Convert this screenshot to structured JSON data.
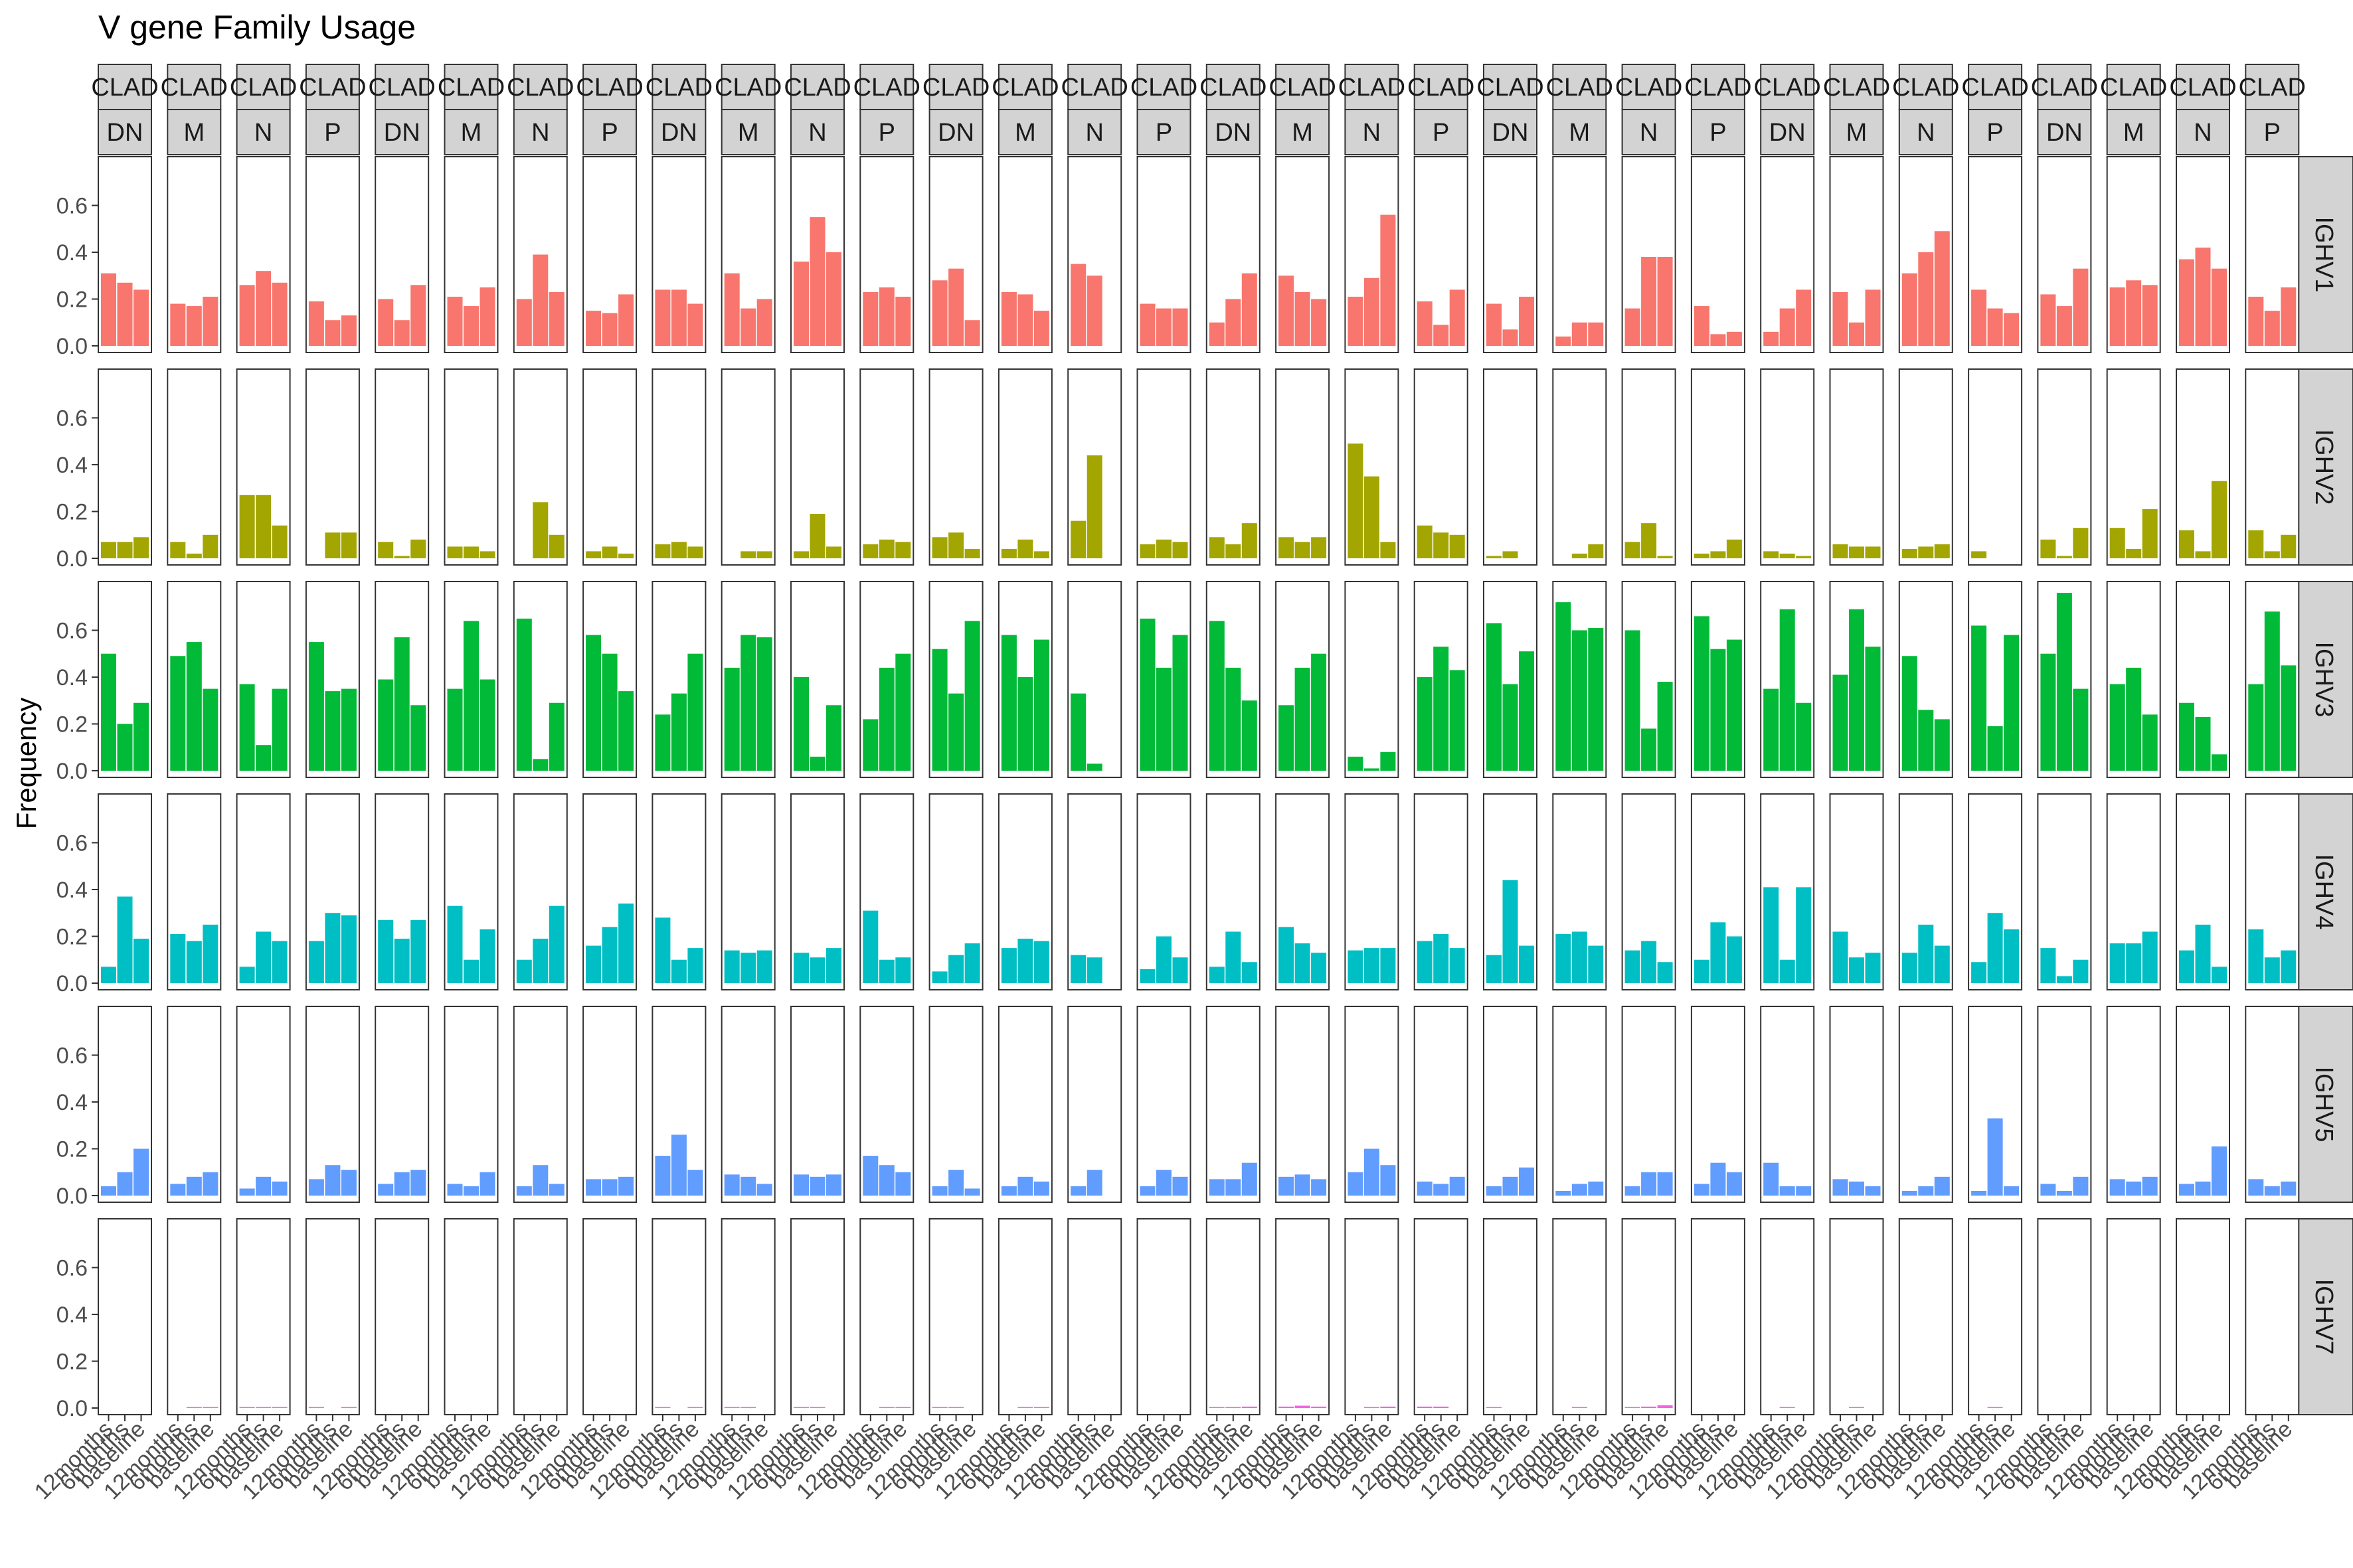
{
  "chart_data": {
    "type": "bar",
    "title": "V gene Family Usage",
    "ylabel": "Frequency",
    "xlabel": "",
    "ylim": [
      0,
      0.78
    ],
    "yticks": [
      0.0,
      0.2,
      0.4,
      0.6
    ],
    "ytick_labels": [
      "0.0",
      "0.2",
      "0.4",
      "0.6"
    ],
    "categories": [
      "12months",
      "6months",
      "baseline"
    ],
    "strip_top_label": "CLAD",
    "col_groups": [
      "DN",
      "M",
      "N",
      "P",
      "DN",
      "M",
      "N",
      "P",
      "DN",
      "M",
      "N",
      "P",
      "DN",
      "M",
      "N",
      "P",
      "DN",
      "M",
      "N",
      "P",
      "DN",
      "M",
      "N",
      "P",
      "DN",
      "M",
      "N",
      "P",
      "DN",
      "M",
      "N",
      "P"
    ],
    "grid": false,
    "legend": "none",
    "series": [
      {
        "name": "IGHV1",
        "color": "#F8766D",
        "values": [
          [
            0.31,
            0.27,
            0.24
          ],
          [
            0.18,
            0.17,
            0.21
          ],
          [
            0.26,
            0.32,
            0.27
          ],
          [
            0.19,
            0.11,
            0.13
          ],
          [
            0.2,
            0.11,
            0.26
          ],
          [
            0.21,
            0.17,
            0.25
          ],
          [
            0.2,
            0.39,
            0.23
          ],
          [
            0.15,
            0.14,
            0.22
          ],
          [
            0.24,
            0.24,
            0.18
          ],
          [
            0.31,
            0.16,
            0.2
          ],
          [
            0.36,
            0.55,
            0.4
          ],
          [
            0.23,
            0.25,
            0.21
          ],
          [
            0.28,
            0.33,
            0.11
          ],
          [
            0.23,
            0.22,
            0.15
          ],
          [
            0.35,
            0.3,
            0.0
          ],
          [
            0.18,
            0.16,
            0.16
          ],
          [
            0.1,
            0.2,
            0.31
          ],
          [
            0.3,
            0.23,
            0.2
          ],
          [
            0.21,
            0.29,
            0.56
          ],
          [
            0.19,
            0.09,
            0.24
          ],
          [
            0.18,
            0.07,
            0.21
          ],
          [
            0.04,
            0.1,
            0.1
          ],
          [
            0.16,
            0.38,
            0.38
          ],
          [
            0.17,
            0.05,
            0.06
          ],
          [
            0.06,
            0.16,
            0.24
          ],
          [
            0.23,
            0.1,
            0.24
          ],
          [
            0.31,
            0.4,
            0.49
          ],
          [
            0.24,
            0.16,
            0.14
          ],
          [
            0.22,
            0.17,
            0.33
          ],
          [
            0.25,
            0.28,
            0.26
          ],
          [
            0.37,
            0.42,
            0.33
          ],
          [
            0.21,
            0.15,
            0.25
          ]
        ]
      },
      {
        "name": "IGHV2",
        "color": "#A3A500",
        "values": [
          [
            0.07,
            0.07,
            0.09
          ],
          [
            0.07,
            0.02,
            0.1
          ],
          [
            0.27,
            0.27,
            0.14
          ],
          [
            0.0,
            0.11,
            0.11
          ],
          [
            0.07,
            0.01,
            0.08
          ],
          [
            0.05,
            0.05,
            0.03
          ],
          [
            0.0,
            0.24,
            0.1
          ],
          [
            0.03,
            0.05,
            0.02
          ],
          [
            0.06,
            0.07,
            0.05
          ],
          [
            0.0,
            0.03,
            0.03
          ],
          [
            0.03,
            0.19,
            0.05
          ],
          [
            0.06,
            0.08,
            0.07
          ],
          [
            0.09,
            0.11,
            0.04
          ],
          [
            0.04,
            0.08,
            0.03
          ],
          [
            0.16,
            0.44,
            0.0
          ],
          [
            0.06,
            0.08,
            0.07
          ],
          [
            0.09,
            0.06,
            0.15
          ],
          [
            0.09,
            0.07,
            0.09
          ],
          [
            0.49,
            0.35,
            0.07
          ],
          [
            0.14,
            0.11,
            0.1
          ],
          [
            0.01,
            0.03,
            0.0
          ],
          [
            0.0,
            0.02,
            0.06
          ],
          [
            0.07,
            0.15,
            0.01
          ],
          [
            0.02,
            0.03,
            0.08
          ],
          [
            0.03,
            0.02,
            0.01
          ],
          [
            0.06,
            0.05,
            0.05
          ],
          [
            0.04,
            0.05,
            0.06
          ],
          [
            0.03,
            0.0,
            0.0
          ],
          [
            0.08,
            0.01,
            0.13
          ],
          [
            0.13,
            0.04,
            0.21
          ],
          [
            0.12,
            0.03,
            0.33
          ],
          [
            0.12,
            0.03,
            0.1
          ]
        ]
      },
      {
        "name": "IGHV3",
        "color": "#00BA38",
        "values": [
          [
            0.5,
            0.2,
            0.29
          ],
          [
            0.49,
            0.55,
            0.35
          ],
          [
            0.37,
            0.11,
            0.35
          ],
          [
            0.55,
            0.34,
            0.35
          ],
          [
            0.39,
            0.57,
            0.28
          ],
          [
            0.35,
            0.64,
            0.39
          ],
          [
            0.65,
            0.05,
            0.29
          ],
          [
            0.58,
            0.5,
            0.34
          ],
          [
            0.24,
            0.33,
            0.5
          ],
          [
            0.44,
            0.58,
            0.57
          ],
          [
            0.4,
            0.06,
            0.28
          ],
          [
            0.22,
            0.44,
            0.5
          ],
          [
            0.52,
            0.33,
            0.64
          ],
          [
            0.58,
            0.4,
            0.56
          ],
          [
            0.33,
            0.03,
            0.0
          ],
          [
            0.65,
            0.44,
            0.58
          ],
          [
            0.64,
            0.44,
            0.3
          ],
          [
            0.28,
            0.44,
            0.5
          ],
          [
            0.06,
            0.01,
            0.08
          ],
          [
            0.4,
            0.53,
            0.43
          ],
          [
            0.63,
            0.37,
            0.51
          ],
          [
            0.72,
            0.6,
            0.61
          ],
          [
            0.6,
            0.18,
            0.38
          ],
          [
            0.66,
            0.52,
            0.56
          ],
          [
            0.35,
            0.69,
            0.29
          ],
          [
            0.41,
            0.69,
            0.53
          ],
          [
            0.49,
            0.26,
            0.22
          ],
          [
            0.62,
            0.19,
            0.58
          ],
          [
            0.5,
            0.76,
            0.35
          ],
          [
            0.37,
            0.44,
            0.24
          ],
          [
            0.29,
            0.23,
            0.07
          ],
          [
            0.37,
            0.68,
            0.45
          ]
        ]
      },
      {
        "name": "IGHV4",
        "color": "#00BFC4",
        "values": [
          [
            0.07,
            0.37,
            0.19
          ],
          [
            0.21,
            0.18,
            0.25
          ],
          [
            0.07,
            0.22,
            0.18
          ],
          [
            0.18,
            0.3,
            0.29
          ],
          [
            0.27,
            0.19,
            0.27
          ],
          [
            0.33,
            0.1,
            0.23
          ],
          [
            0.1,
            0.19,
            0.33
          ],
          [
            0.16,
            0.24,
            0.34
          ],
          [
            0.28,
            0.1,
            0.15
          ],
          [
            0.14,
            0.13,
            0.14
          ],
          [
            0.13,
            0.11,
            0.15
          ],
          [
            0.31,
            0.1,
            0.11
          ],
          [
            0.05,
            0.12,
            0.17
          ],
          [
            0.15,
            0.19,
            0.18
          ],
          [
            0.12,
            0.11,
            0.0
          ],
          [
            0.06,
            0.2,
            0.11
          ],
          [
            0.07,
            0.22,
            0.09
          ],
          [
            0.24,
            0.17,
            0.13
          ],
          [
            0.14,
            0.15,
            0.15
          ],
          [
            0.18,
            0.21,
            0.15
          ],
          [
            0.12,
            0.44,
            0.16
          ],
          [
            0.21,
            0.22,
            0.16
          ],
          [
            0.14,
            0.18,
            0.09
          ],
          [
            0.1,
            0.26,
            0.2
          ],
          [
            0.41,
            0.1,
            0.41
          ],
          [
            0.22,
            0.11,
            0.13
          ],
          [
            0.13,
            0.25,
            0.16
          ],
          [
            0.09,
            0.3,
            0.23
          ],
          [
            0.15,
            0.03,
            0.1
          ],
          [
            0.17,
            0.17,
            0.22
          ],
          [
            0.14,
            0.25,
            0.07
          ],
          [
            0.23,
            0.11,
            0.14
          ]
        ]
      },
      {
        "name": "IGHV5",
        "color": "#619CFF",
        "values": [
          [
            0.04,
            0.1,
            0.2
          ],
          [
            0.05,
            0.08,
            0.1
          ],
          [
            0.03,
            0.08,
            0.06
          ],
          [
            0.07,
            0.13,
            0.11
          ],
          [
            0.05,
            0.1,
            0.11
          ],
          [
            0.05,
            0.04,
            0.1
          ],
          [
            0.04,
            0.13,
            0.05
          ],
          [
            0.07,
            0.07,
            0.08
          ],
          [
            0.17,
            0.26,
            0.11
          ],
          [
            0.09,
            0.08,
            0.05
          ],
          [
            0.09,
            0.08,
            0.09
          ],
          [
            0.17,
            0.13,
            0.1
          ],
          [
            0.04,
            0.11,
            0.03
          ],
          [
            0.04,
            0.08,
            0.06
          ],
          [
            0.04,
            0.11,
            0.0
          ],
          [
            0.04,
            0.11,
            0.08
          ],
          [
            0.07,
            0.07,
            0.14
          ],
          [
            0.08,
            0.09,
            0.07
          ],
          [
            0.1,
            0.2,
            0.13
          ],
          [
            0.06,
            0.05,
            0.08
          ],
          [
            0.04,
            0.08,
            0.12
          ],
          [
            0.02,
            0.05,
            0.06
          ],
          [
            0.04,
            0.1,
            0.1
          ],
          [
            0.05,
            0.14,
            0.1
          ],
          [
            0.14,
            0.04,
            0.04
          ],
          [
            0.07,
            0.06,
            0.04
          ],
          [
            0.02,
            0.04,
            0.08
          ],
          [
            0.02,
            0.33,
            0.04
          ],
          [
            0.05,
            0.02,
            0.08
          ],
          [
            0.07,
            0.06,
            0.08
          ],
          [
            0.05,
            0.06,
            0.21
          ],
          [
            0.07,
            0.04,
            0.06
          ]
        ]
      },
      {
        "name": "IGHV7",
        "color": "#F564E3",
        "values": [
          [
            0,
            0,
            0
          ],
          [
            0,
            0.002,
            0.002
          ],
          [
            0.002,
            0.002,
            0.002
          ],
          [
            0.002,
            0,
            0.002
          ],
          [
            0,
            0,
            0
          ],
          [
            0,
            0,
            0
          ],
          [
            0,
            0,
            0
          ],
          [
            0,
            0,
            0
          ],
          [
            0.002,
            0,
            0.002
          ],
          [
            0.002,
            0.002,
            0
          ],
          [
            0.002,
            0.002,
            0
          ],
          [
            0,
            0.002,
            0.002
          ],
          [
            0.002,
            0.002,
            0
          ],
          [
            0,
            0.002,
            0.002
          ],
          [
            0,
            0,
            0
          ],
          [
            0,
            0,
            0
          ],
          [
            0.004,
            0.004,
            0.006
          ],
          [
            0.006,
            0.01,
            0.006
          ],
          [
            0,
            0.004,
            0.006
          ],
          [
            0.006,
            0.006,
            0
          ],
          [
            0.002,
            0,
            0
          ],
          [
            0,
            0.002,
            0
          ],
          [
            0.002,
            0.006,
            0.012
          ],
          [
            0,
            0,
            0
          ],
          [
            0,
            0.002,
            0
          ],
          [
            0,
            0.002,
            0
          ],
          [
            0,
            0,
            0
          ],
          [
            0,
            0.004,
            0
          ],
          [
            0,
            0,
            0
          ],
          [
            0,
            0,
            0
          ],
          [
            0,
            0,
            0
          ],
          [
            0,
            0,
            0
          ]
        ]
      }
    ]
  }
}
